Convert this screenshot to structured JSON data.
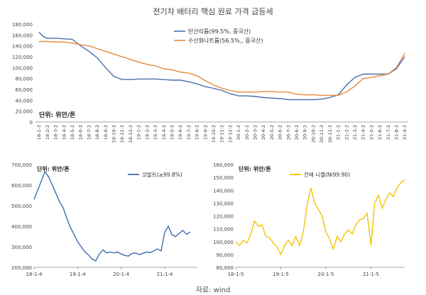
{
  "title": "전기차 배터리 핵심 원료 가격 급등세",
  "source": "자료: wind",
  "chart_data": [
    {
      "id": "top",
      "type": "line",
      "unit_note": "단위: 위안/톤",
      "ylim": [
        0,
        180000
      ],
      "yticks": [
        0,
        20000,
        40000,
        60000,
        80000,
        100000,
        120000,
        140000,
        160000,
        180000
      ],
      "ytick_labels": [
        "0",
        "20,000",
        "40,000",
        "60,000",
        "80,000",
        "100,000",
        "120,000",
        "140,000",
        "160,000",
        "180,000"
      ],
      "x_categories": [
        "18-1-2",
        "18-2-2",
        "18-3-2",
        "18-4-2",
        "18-5-2",
        "18-6-2",
        "18-7-2",
        "18-8-2",
        "18-9-2",
        "18-10-2",
        "18-11-2",
        "18-12-2",
        "19-1-2",
        "19-2-2",
        "19-3-2",
        "19-4-2",
        "19-5-2",
        "19-6-2",
        "19-7-2",
        "19-8-2",
        "19-9-2",
        "19-10-2",
        "19-11-2",
        "19-12-2",
        "20-1-2",
        "20-2-2",
        "20-3-2",
        "20-4-2",
        "20-5-2",
        "20-6-2",
        "20-7-2",
        "20-8-2",
        "20-9-2",
        "20-10-2",
        "20-11-2",
        "20-12-2",
        "21-1-2",
        "21-2-2",
        "21-3-2",
        "21-4-2",
        "21-5-2",
        "21-6-2",
        "21-7-2",
        "21-8-2",
        "21-9-2"
      ],
      "series": [
        {
          "name": "탄산리튬(99.5%, 중국산)",
          "color": "#4a6fb0",
          "points": [
            [
              0,
              165000
            ],
            [
              0.5,
              157000
            ],
            [
              1,
              154000
            ],
            [
              2,
              154000
            ],
            [
              3,
              153000
            ],
            [
              4,
              152000
            ],
            [
              5,
              140000
            ],
            [
              6,
              130000
            ],
            [
              7,
              118000
            ],
            [
              8,
              100000
            ],
            [
              9,
              84000
            ],
            [
              10,
              78000
            ],
            [
              11,
              78000
            ],
            [
              12,
              79000
            ],
            [
              13,
              79000
            ],
            [
              14,
              79000
            ],
            [
              15,
              78000
            ],
            [
              16,
              77000
            ],
            [
              17,
              77000
            ],
            [
              18,
              74000
            ],
            [
              19,
              70000
            ],
            [
              20,
              65000
            ],
            [
              21,
              62000
            ],
            [
              22,
              58000
            ],
            [
              23,
              52000
            ],
            [
              24,
              48000
            ],
            [
              25,
              48000
            ],
            [
              26,
              47000
            ],
            [
              27,
              45000
            ],
            [
              28,
              44000
            ],
            [
              29,
              43000
            ],
            [
              30,
              41000
            ],
            [
              31,
              41000
            ],
            [
              32,
              41000
            ],
            [
              33,
              41000
            ],
            [
              34,
              42000
            ],
            [
              35,
              45000
            ],
            [
              36,
              50000
            ],
            [
              37,
              68000
            ],
            [
              38,
              82000
            ],
            [
              39,
              88000
            ],
            [
              40,
              88000
            ],
            [
              41,
              88000
            ],
            [
              42,
              88000
            ],
            [
              43,
              98000
            ],
            [
              44,
              120000
            ]
          ]
        },
        {
          "name": "수산화나트륨(56.5%,, 중국산)",
          "color": "#e8883a",
          "points": [
            [
              0,
              148000
            ],
            [
              1,
              148000
            ],
            [
              2,
              147000
            ],
            [
              3,
              147000
            ],
            [
              4,
              145000
            ],
            [
              5,
              142000
            ],
            [
              6,
              140000
            ],
            [
              7,
              135000
            ],
            [
              8,
              130000
            ],
            [
              9,
              125000
            ],
            [
              10,
              120000
            ],
            [
              11,
              115000
            ],
            [
              12,
              110000
            ],
            [
              13,
              106000
            ],
            [
              14,
              103000
            ],
            [
              15,
              98000
            ],
            [
              16,
              96000
            ],
            [
              17,
              92000
            ],
            [
              18,
              90000
            ],
            [
              19,
              85000
            ],
            [
              20,
              76000
            ],
            [
              21,
              68000
            ],
            [
              22,
              62000
            ],
            [
              23,
              58000
            ],
            [
              24,
              55000
            ],
            [
              25,
              55000
            ],
            [
              26,
              55000
            ],
            [
              27,
              56000
            ],
            [
              28,
              56000
            ],
            [
              29,
              55000
            ],
            [
              30,
              55000
            ],
            [
              31,
              51000
            ],
            [
              32,
              50000
            ],
            [
              33,
              50000
            ],
            [
              34,
              49000
            ],
            [
              35,
              49000
            ],
            [
              36,
              49000
            ],
            [
              37,
              55000
            ],
            [
              38,
              66000
            ],
            [
              39,
              80000
            ],
            [
              40,
              82000
            ],
            [
              41,
              85000
            ],
            [
              42,
              88000
            ],
            [
              43,
              100000
            ],
            [
              44,
              126000
            ]
          ]
        }
      ]
    },
    {
      "id": "bottom-left",
      "type": "line",
      "unit_note": "단위: 위안/톤",
      "ylim": [
        200000,
        700000
      ],
      "yticks": [
        200000,
        300000,
        400000,
        500000,
        600000,
        700000
      ],
      "ytick_labels": [
        "200,000",
        "300,000",
        "400,000",
        "500,000",
        "600,000",
        "700,000"
      ],
      "xlim": [
        0,
        45
      ],
      "xticks": [
        0,
        12,
        24,
        36
      ],
      "xtick_labels": [
        "18-1-4",
        "19-1-4",
        "20-1-4",
        "21-1-4"
      ],
      "series": [
        {
          "name": "코발트(≥99.8%)",
          "color": "#3d6bb3",
          "points": [
            [
              0,
              530000
            ],
            [
              1,
              575000
            ],
            [
              2,
              620000
            ],
            [
              3,
              665000
            ],
            [
              4,
              640000
            ],
            [
              5,
              600000
            ],
            [
              6,
              560000
            ],
            [
              7,
              520000
            ],
            [
              8,
              490000
            ],
            [
              9,
              440000
            ],
            [
              10,
              395000
            ],
            [
              11,
              360000
            ],
            [
              12,
              325000
            ],
            [
              13,
              300000
            ],
            [
              14,
              275000
            ],
            [
              15,
              260000
            ],
            [
              16,
              240000
            ],
            [
              17,
              232000
            ],
            [
              18,
              265000
            ],
            [
              19,
              285000
            ],
            [
              20,
              270000
            ],
            [
              21,
              275000
            ],
            [
              22,
              270000
            ],
            [
              23,
              275000
            ],
            [
              24,
              265000
            ],
            [
              25,
              258000
            ],
            [
              26,
              255000
            ],
            [
              27,
              268000
            ],
            [
              28,
              270000
            ],
            [
              29,
              262000
            ],
            [
              30,
              268000
            ],
            [
              31,
              275000
            ],
            [
              32,
              272000
            ],
            [
              33,
              280000
            ],
            [
              34,
              290000
            ],
            [
              35,
              280000
            ],
            [
              36,
              370000
            ],
            [
              37,
              400000
            ],
            [
              38,
              358000
            ],
            [
              39,
              350000
            ],
            [
              40,
              365000
            ],
            [
              41,
              380000
            ],
            [
              42,
              360000
            ],
            [
              43,
              372000
            ]
          ]
        }
      ]
    },
    {
      "id": "bottom-right",
      "type": "line",
      "unit_note": "단위: 위안/톤",
      "ylim": [
        80000,
        160000
      ],
      "yticks": [
        80000,
        90000,
        100000,
        110000,
        120000,
        130000,
        140000,
        150000,
        160000
      ],
      "ytick_labels": [
        "80,000",
        "90,000",
        "100,000",
        "110,000",
        "120,000",
        "130,000",
        "140,000",
        "150,000",
        "160,000"
      ],
      "xlim": [
        0,
        45
      ],
      "xticks": [
        0,
        12,
        24,
        36
      ],
      "xtick_labels": [
        "18-1-5",
        "19-1-5",
        "20-1-5",
        "21-1-5"
      ],
      "series": [
        {
          "name": "전해 니켈(Ni99.90)",
          "color": "#f2c500",
          "points": [
            [
              0,
              100000
            ],
            [
              1,
              97000
            ],
            [
              2,
              101000
            ],
            [
              3,
              99000
            ],
            [
              4,
              106000
            ],
            [
              5,
              116000
            ],
            [
              6,
              112000
            ],
            [
              7,
              113000
            ],
            [
              8,
              104000
            ],
            [
              9,
              103000
            ],
            [
              10,
              99000
            ],
            [
              11,
              96000
            ],
            [
              12,
              90000
            ],
            [
              13,
              97000
            ],
            [
              14,
              101000
            ],
            [
              15,
              97000
            ],
            [
              16,
              104000
            ],
            [
              17,
              97000
            ],
            [
              18,
              108000
            ],
            [
              19,
              128000
            ],
            [
              20,
              142000
            ],
            [
              21,
              130000
            ],
            [
              22,
              125000
            ],
            [
              23,
              120000
            ],
            [
              24,
              108000
            ],
            [
              25,
              102000
            ],
            [
              26,
              94000
            ],
            [
              27,
              104000
            ],
            [
              28,
              100000
            ],
            [
              29,
              106000
            ],
            [
              30,
              109000
            ],
            [
              31,
              106000
            ],
            [
              32,
              113000
            ],
            [
              33,
              117000
            ],
            [
              34,
              118000
            ],
            [
              35,
              122000
            ],
            [
              36,
              97000
            ],
            [
              37,
              130000
            ],
            [
              38,
              136000
            ],
            [
              39,
              126000
            ],
            [
              40,
              133000
            ],
            [
              41,
              138000
            ],
            [
              42,
              135000
            ],
            [
              43,
              142000
            ],
            [
              44,
              146000
            ],
            [
              45,
              148000
            ]
          ]
        }
      ]
    }
  ]
}
